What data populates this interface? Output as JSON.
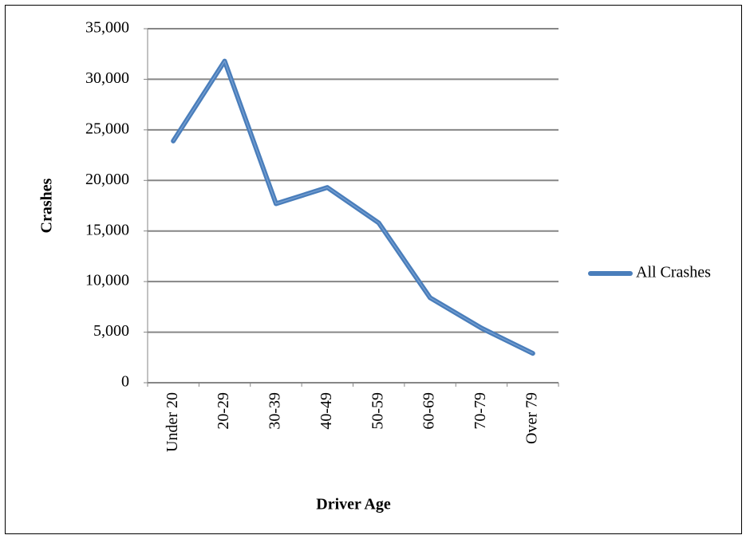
{
  "chart_data": {
    "type": "line",
    "x_label": "Driver Age",
    "y_label": "Crashes",
    "categories": [
      "Under 20",
      "20-29",
      "30-39",
      "40-49",
      "50-59",
      "60-69",
      "70-79",
      "Over 79"
    ],
    "series": [
      {
        "name": "All Crashes",
        "color": "#4a7ebb",
        "values": [
          23900,
          31800,
          17700,
          19300,
          15800,
          8400,
          5400,
          2900
        ]
      }
    ],
    "ylim": [
      0,
      35000
    ],
    "yticks": [
      0,
      {
        "value": 5000,
        "label": "5,000"
      },
      {
        "value": 10000,
        "label": "10,000"
      },
      {
        "value": 15000,
        "label": "15,000"
      },
      {
        "value": 20000,
        "label": "20,000"
      },
      {
        "value": 25000,
        "label": "25,000"
      },
      {
        "value": 30000,
        "label": "30,000"
      },
      {
        "value": 35000,
        "label": "35,000"
      }
    ],
    "grid": true,
    "legend": "right"
  }
}
